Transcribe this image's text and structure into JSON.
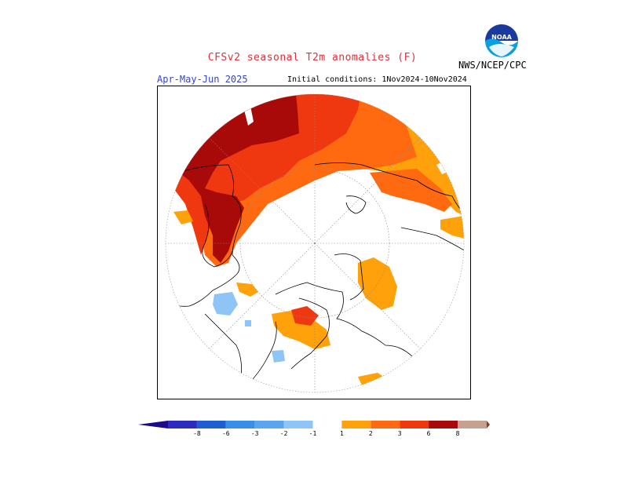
{
  "header": {
    "title": "CFSv2 seasonal T2m anomalies (F)",
    "season": "Apr-May-Jun 2025",
    "initial_conditions": "Initial conditions: 1Nov2024-10Nov2024",
    "agency": "NWS/NCEP/CPC"
  },
  "logo": {
    "name": "noaa-logo-icon",
    "text": "NOAA"
  },
  "colors": {
    "cold_extreme": "#1a0a8c",
    "cold_1": "#2b2bc0",
    "cold_2": "#1e5fd0",
    "cold_3": "#3a8ee8",
    "cold_4": "#5aa6ee",
    "cold_5": "#8ec4f6",
    "neutral": "#ffffff",
    "warm_1": "#ffa10a",
    "warm_2": "#ff6a10",
    "warm_3": "#f03810",
    "warm_4": "#a80a0a",
    "warm_5": "#c8a090",
    "warm_extreme": "#7a4030"
  },
  "legend": {
    "ticks": [
      "-8",
      "-6",
      "-3",
      "-2",
      "-1",
      "1",
      "2",
      "3",
      "6",
      "8"
    ]
  }
}
